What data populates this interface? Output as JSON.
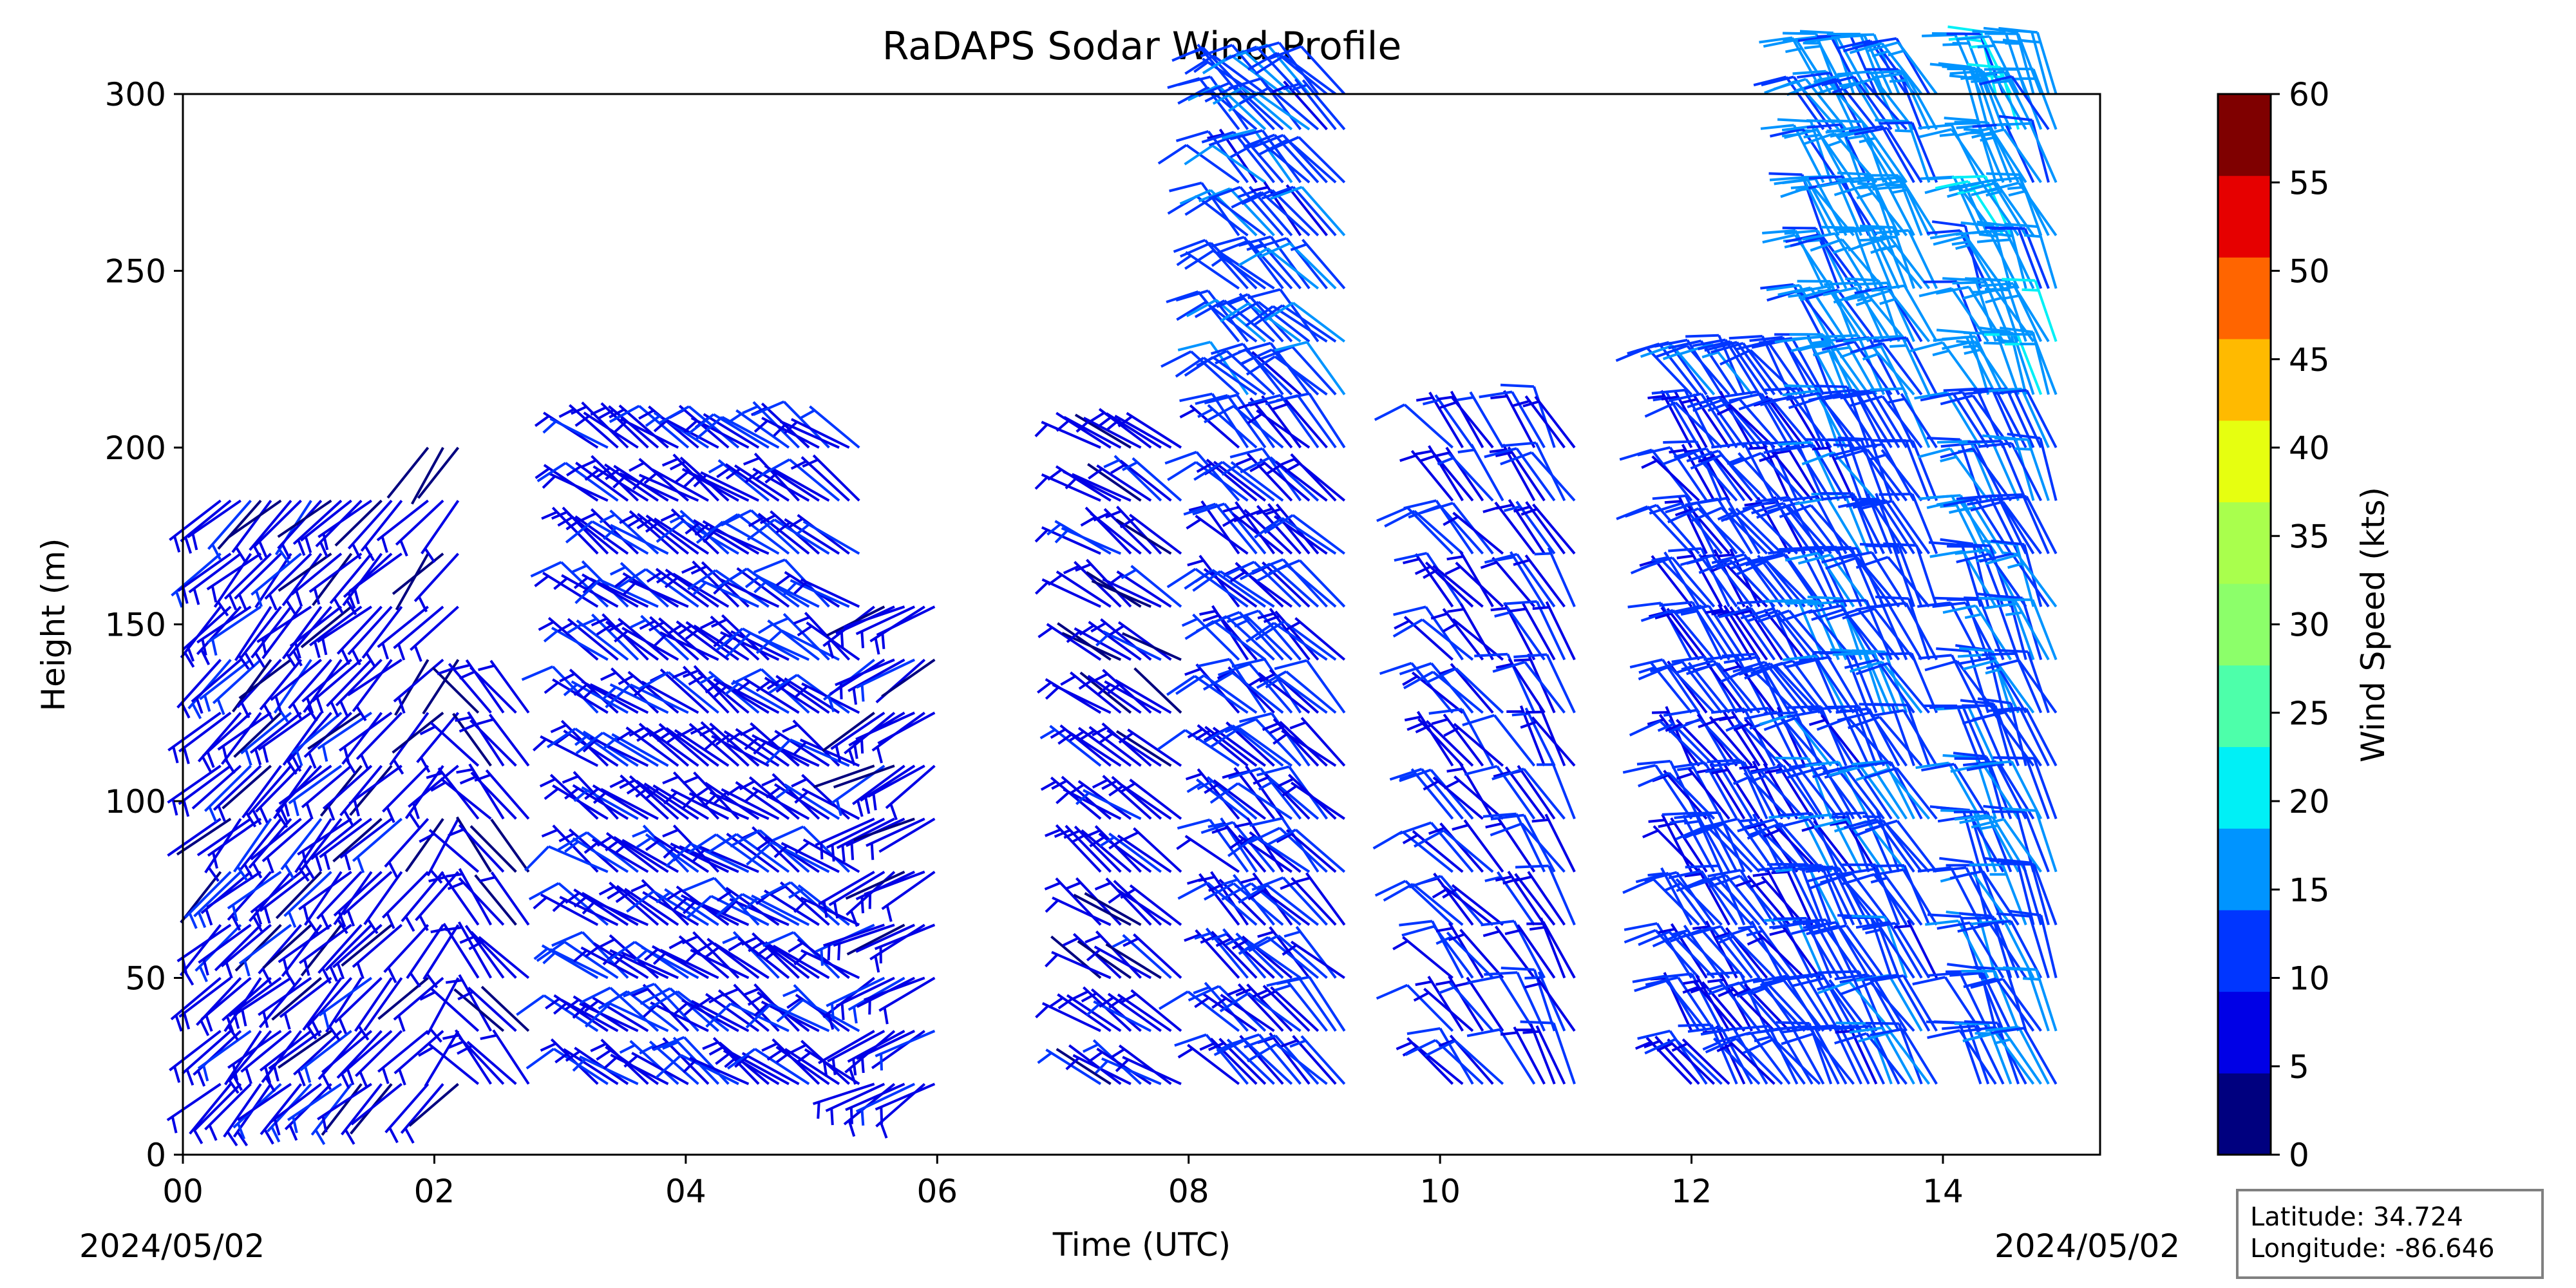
{
  "chart_data": {
    "type": "wind-barbs",
    "title": "RaDAPS Sodar Wind Profile",
    "xlabel": "Time (UTC)",
    "ylabel": "Height (m)",
    "xlim": [
      0,
      15.25
    ],
    "ylim": [
      0,
      300
    ],
    "x_ticks": [
      "00",
      "02",
      "04",
      "06",
      "08",
      "10",
      "12",
      "14"
    ],
    "x_tick_values": [
      0,
      2,
      4,
      6,
      8,
      10,
      12,
      14
    ],
    "y_ticks": [
      0,
      50,
      100,
      150,
      200,
      250,
      300
    ],
    "date_left": "2024/05/02",
    "date_right": "2024/05/02",
    "colorbar": {
      "label": "Wind Speed (kts)",
      "ticks": [
        0,
        5,
        10,
        15,
        20,
        25,
        30,
        35,
        40,
        45,
        50,
        55,
        60
      ],
      "colors": [
        "#00007f",
        "#0000e6",
        "#0036ff",
        "#0094ff",
        "#00f0f6",
        "#4dffaa",
        "#8cff6a",
        "#a9ff4d",
        "#e6ff10",
        "#ffba00",
        "#ff6500",
        "#e60000",
        "#7f0000"
      ]
    },
    "location": {
      "latitude": "Latitude: 34.724",
      "longitude": "Longitude: -86.646"
    },
    "heights": [
      20,
      35,
      50,
      65,
      80,
      95,
      110,
      125,
      140,
      155,
      170,
      185,
      200,
      215,
      230,
      245,
      260,
      275,
      290,
      300
    ],
    "segments": [
      {
        "start": 0.3,
        "end": 1.75,
        "step": 0.08,
        "top": 190,
        "spd": 7,
        "dir": 225
      },
      {
        "start": 1.95,
        "end": 2.3,
        "step": 0.12,
        "top": 200,
        "spd": 6,
        "dir": 220
      },
      {
        "start": 2.35,
        "end": 2.75,
        "step": 0.1,
        "top": 125,
        "spd": 6,
        "dir": 320
      },
      {
        "start": 3.3,
        "end": 5.4,
        "step": 0.08,
        "top": 200,
        "spd": 8,
        "dir": 305
      },
      {
        "start": 5.5,
        "end": 6.0,
        "step": 0.08,
        "top": 155,
        "spd": 7,
        "dir": 240
      },
      {
        "start": 7.3,
        "end": 8.0,
        "step": 0.08,
        "top": 200,
        "spd": 7,
        "dir": 305
      },
      {
        "start": 8.4,
        "end": 9.25,
        "step": 0.07,
        "top": 300,
        "spd": 9,
        "dir": 315
      },
      {
        "start": 10.1,
        "end": 10.55,
        "step": 0.08,
        "top": 200,
        "spd": 9,
        "dir": 320
      },
      {
        "start": 10.75,
        "end": 11.1,
        "step": 0.08,
        "top": 200,
        "spd": 9,
        "dir": 330
      },
      {
        "start": 12.0,
        "end": 13.05,
        "step": 0.06,
        "top": 215,
        "spd": 10,
        "dir": 325
      },
      {
        "start": 13.05,
        "end": 14.0,
        "step": 0.06,
        "top": 300,
        "spd": 12,
        "dir": 330
      },
      {
        "start": 14.3,
        "end": 14.95,
        "step": 0.06,
        "top": 300,
        "spd": 13,
        "dir": 335
      }
    ]
  }
}
